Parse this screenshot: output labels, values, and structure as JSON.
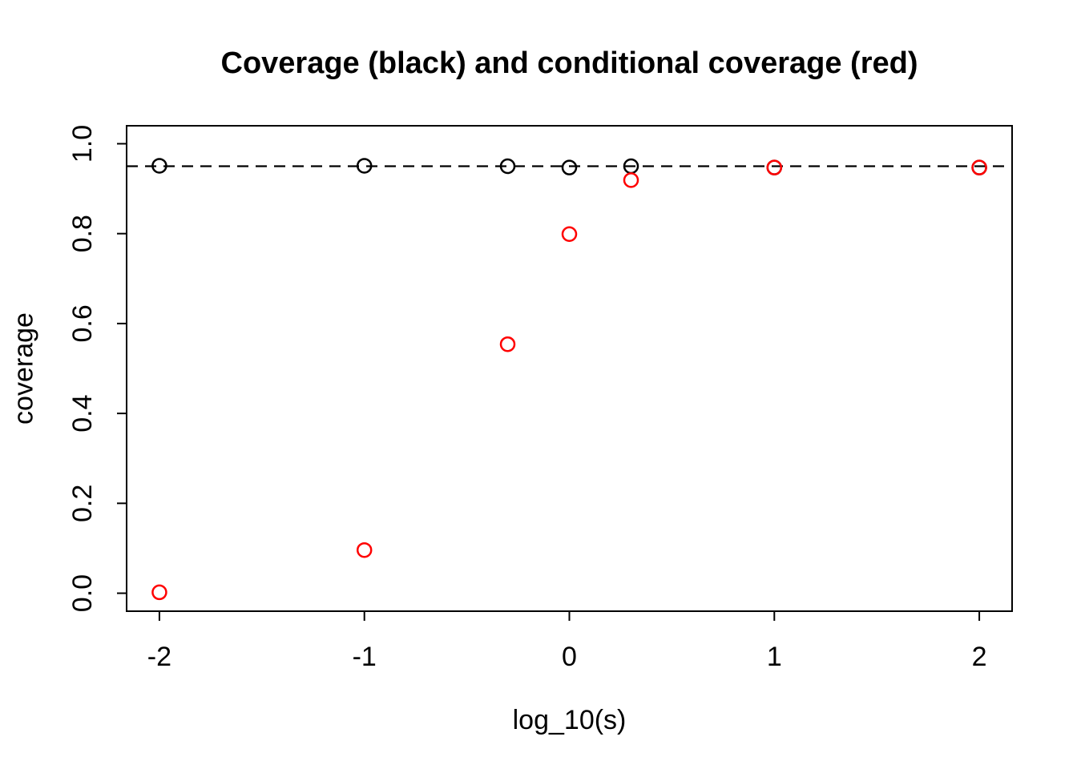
{
  "chart_data": {
    "type": "scatter",
    "title": "Coverage (black) and conditional coverage (red)",
    "xlabel": "log_10(s)",
    "ylabel": "coverage",
    "xlim": [
      -2.16,
      2.16
    ],
    "ylim": [
      -0.04,
      1.04
    ],
    "x_ticks": [
      -2,
      -1,
      0,
      1,
      2
    ],
    "x_tick_labels": [
      "-2",
      "-1",
      "0",
      "1",
      "2"
    ],
    "y_ticks": [
      0.0,
      0.2,
      0.4,
      0.6,
      0.8,
      1.0
    ],
    "y_tick_labels": [
      "0.0",
      "0.2",
      "0.4",
      "0.6",
      "0.8",
      "1.0"
    ],
    "grid": false,
    "legend": "none",
    "background": "#FFFFFF",
    "axis_color": "#000000",
    "reference_line": {
      "y": 0.95,
      "style": "dashed",
      "color": "#000000"
    },
    "series": [
      {
        "name": "coverage",
        "color": "#000000",
        "marker": "open-circle",
        "x": [
          -2,
          -1,
          -0.301,
          0,
          0.301,
          1,
          2
        ],
        "y": [
          0.951,
          0.951,
          0.95,
          0.947,
          0.95,
          0.947,
          0.947
        ]
      },
      {
        "name": "conditional coverage",
        "color": "#FF0000",
        "marker": "open-circle",
        "x": [
          -2,
          -1,
          -0.301,
          0,
          0.301,
          1,
          2
        ],
        "y": [
          0.002,
          0.096,
          0.554,
          0.799,
          0.919,
          0.947,
          0.947
        ]
      }
    ]
  }
}
